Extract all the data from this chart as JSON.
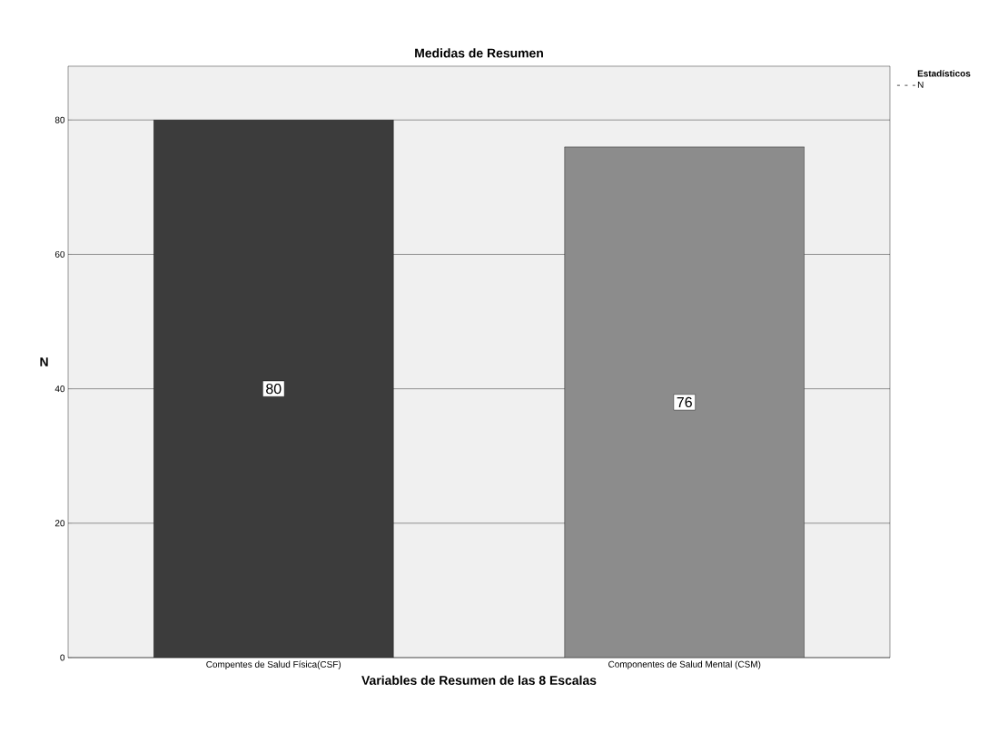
{
  "chart_data": {
    "type": "bar",
    "title": "Medidas de Resumen",
    "xlabel": "Variables de Resumen de las 8 Escalas",
    "ylabel": "N",
    "legend_title": "Estadísticos",
    "categories": [
      "Compentes de Salud Física(CSF)",
      "Componentes de Salud Mental (CSM)"
    ],
    "series": [
      {
        "name": "N",
        "values": [
          80,
          76
        ],
        "colors": [
          "#3c3c3c",
          "#8c8c8c"
        ]
      }
    ],
    "ylim": [
      0,
      88
    ],
    "yticks": [
      0,
      20,
      40,
      60,
      80
    ],
    "grid": "y",
    "legend": "top right",
    "data_labels": true
  }
}
